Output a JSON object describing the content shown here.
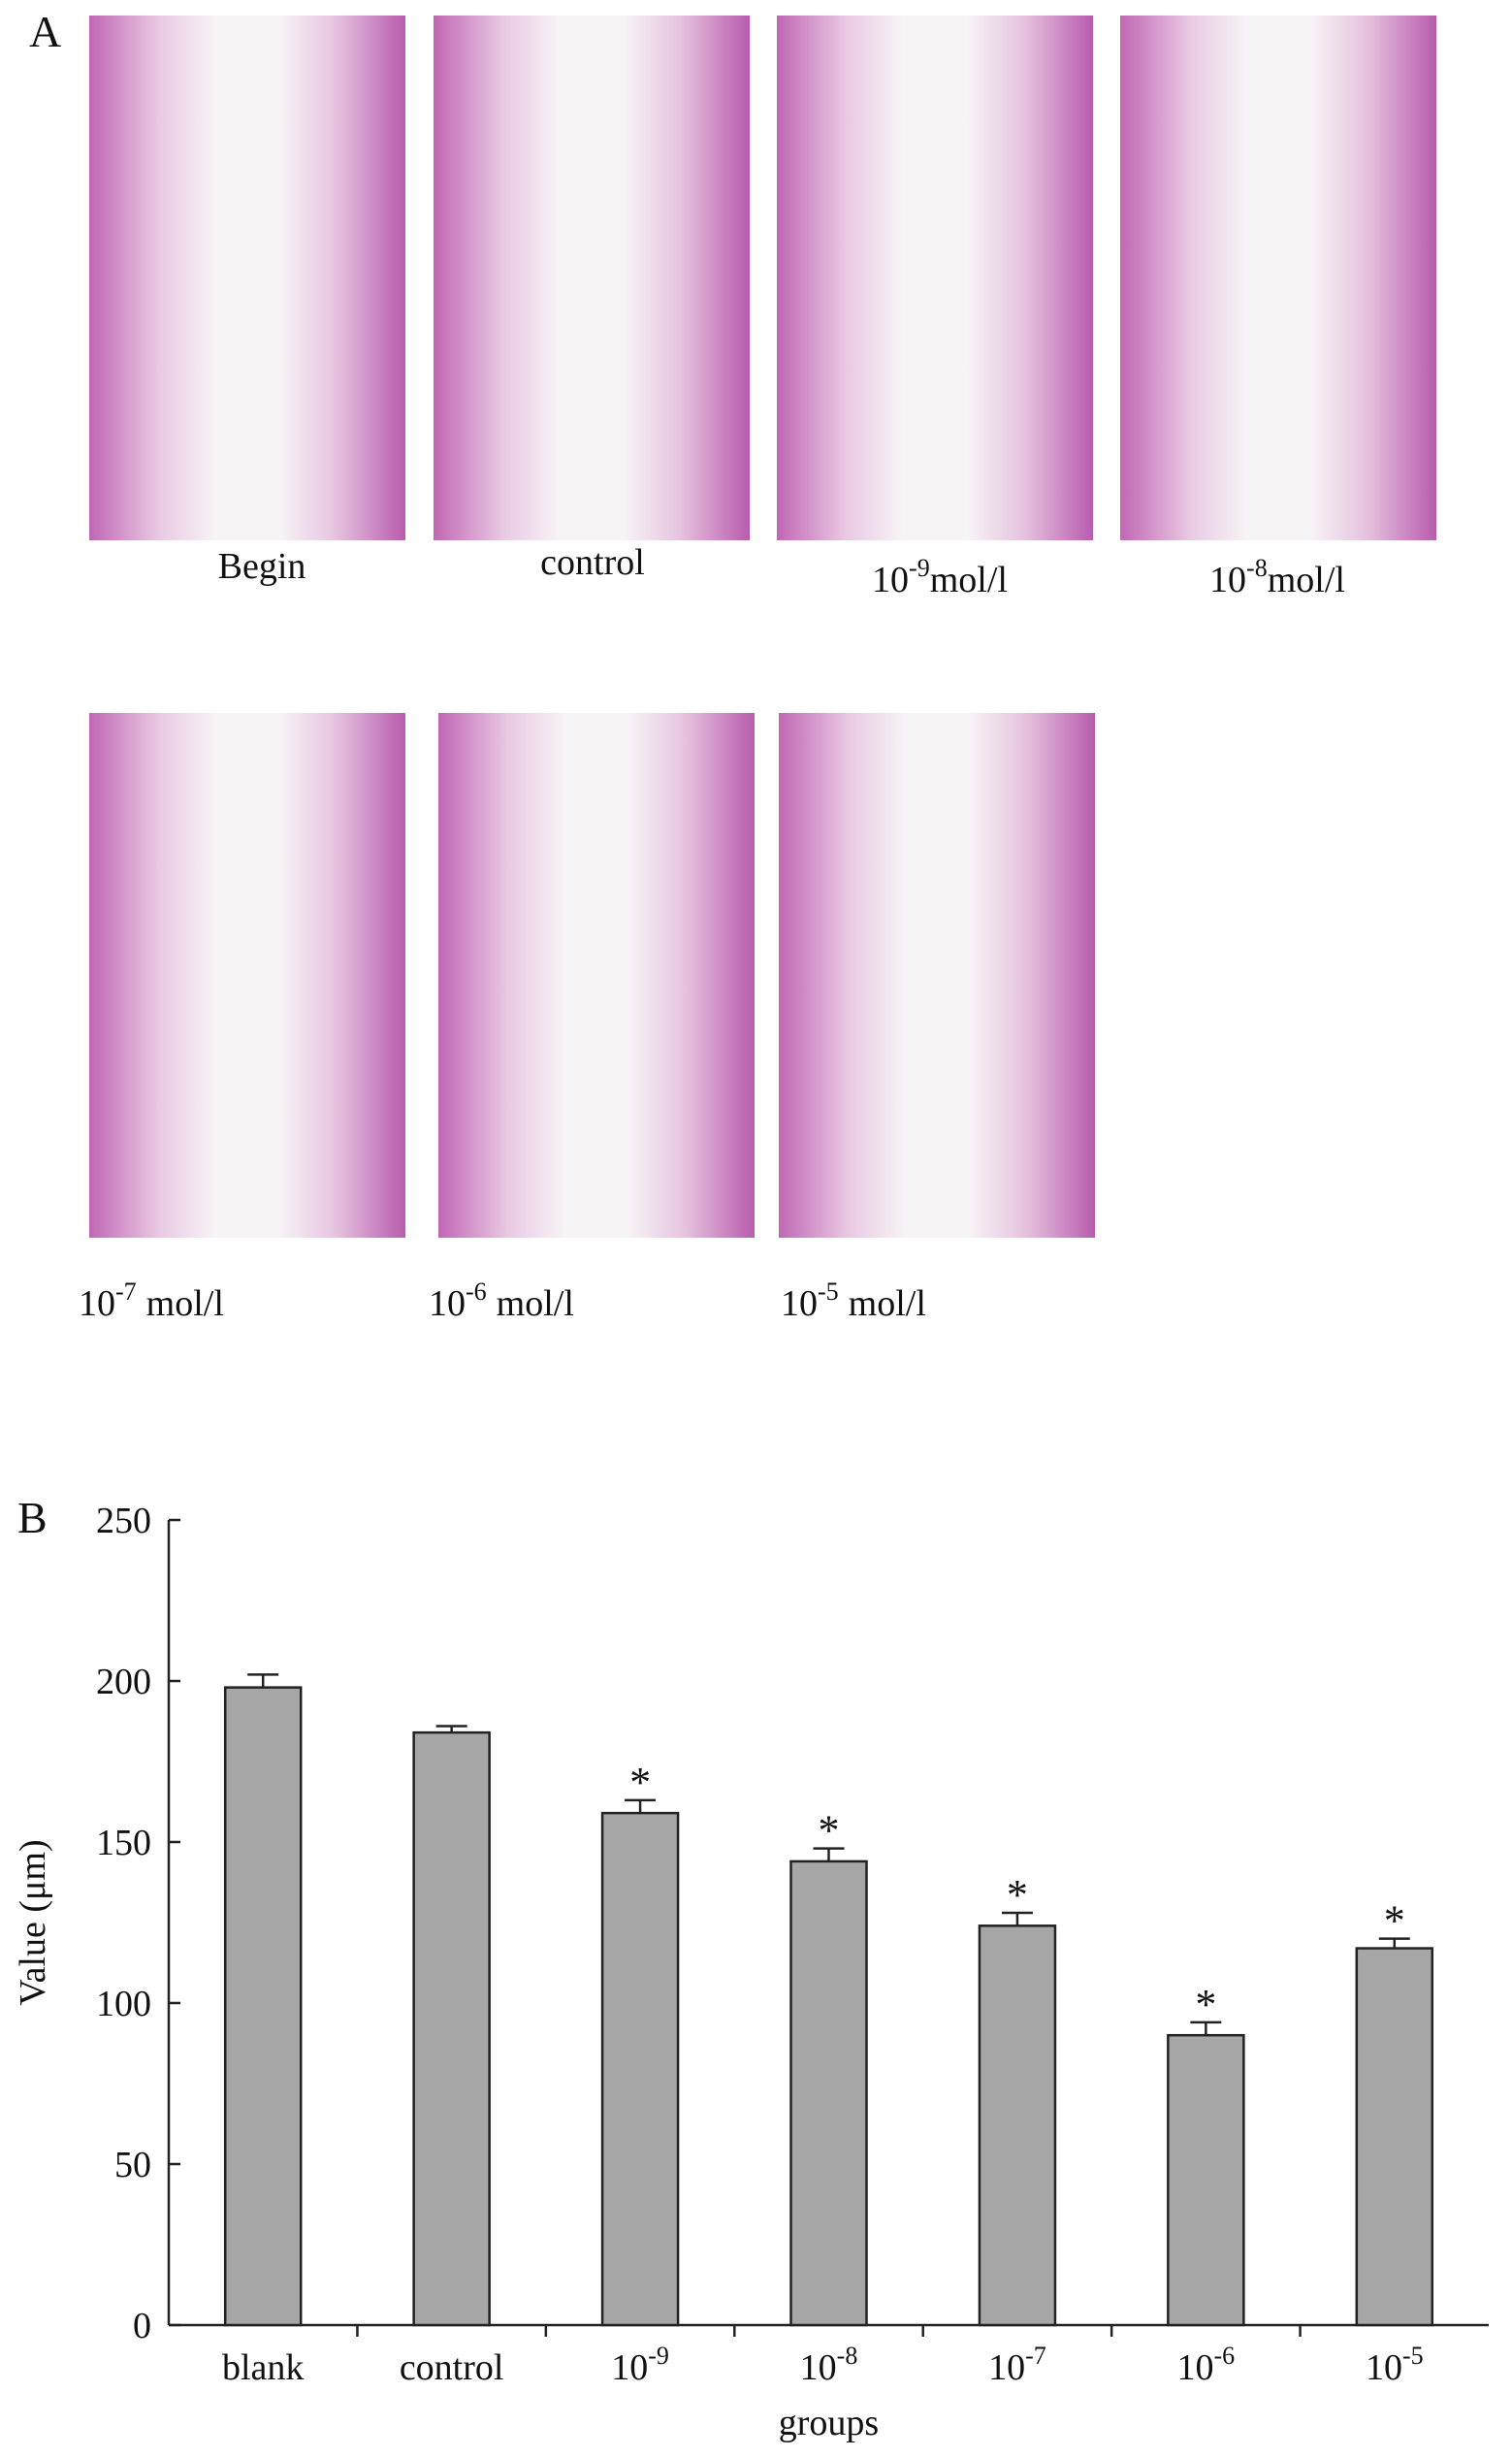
{
  "panel_a": {
    "label": "A",
    "images": [
      {
        "caption": "Begin"
      },
      {
        "caption": "control"
      },
      {
        "caption": {
          "base": "10",
          "exp": "-9",
          "unit": "mol/l"
        }
      },
      {
        "caption": {
          "base": "10",
          "exp": "-8",
          "unit": "mol/l"
        }
      },
      {
        "caption": {
          "base": "10",
          "exp": "-7",
          "unit": "mol/l"
        }
      },
      {
        "caption": {
          "base": "10",
          "exp": "-6",
          "unit": "mol/l"
        }
      },
      {
        "caption": {
          "base": "10",
          "exp": "-5",
          "unit": "mol/l"
        }
      }
    ]
  },
  "panel_b_label": "B",
  "chart_data": {
    "type": "bar",
    "ylabel": "Value (μm)",
    "xlabel": "groups",
    "categories": [
      "blank",
      "control",
      {
        "base": "10",
        "exp": "-9"
      },
      {
        "base": "10",
        "exp": "-8"
      },
      {
        "base": "10",
        "exp": "-7"
      },
      {
        "base": "10",
        "exp": "-6"
      },
      {
        "base": "10",
        "exp": "-5"
      }
    ],
    "values": [
      198,
      184,
      159,
      144,
      124,
      90,
      117
    ],
    "errors": [
      4,
      2,
      4,
      4,
      4,
      4,
      3
    ],
    "annotations": [
      null,
      null,
      "*",
      "*",
      "*",
      "*",
      "*"
    ],
    "color": "#a6a6a6",
    "ylim": [
      0,
      250
    ],
    "yticks": [
      0,
      50,
      100,
      150,
      200,
      250
    ]
  }
}
